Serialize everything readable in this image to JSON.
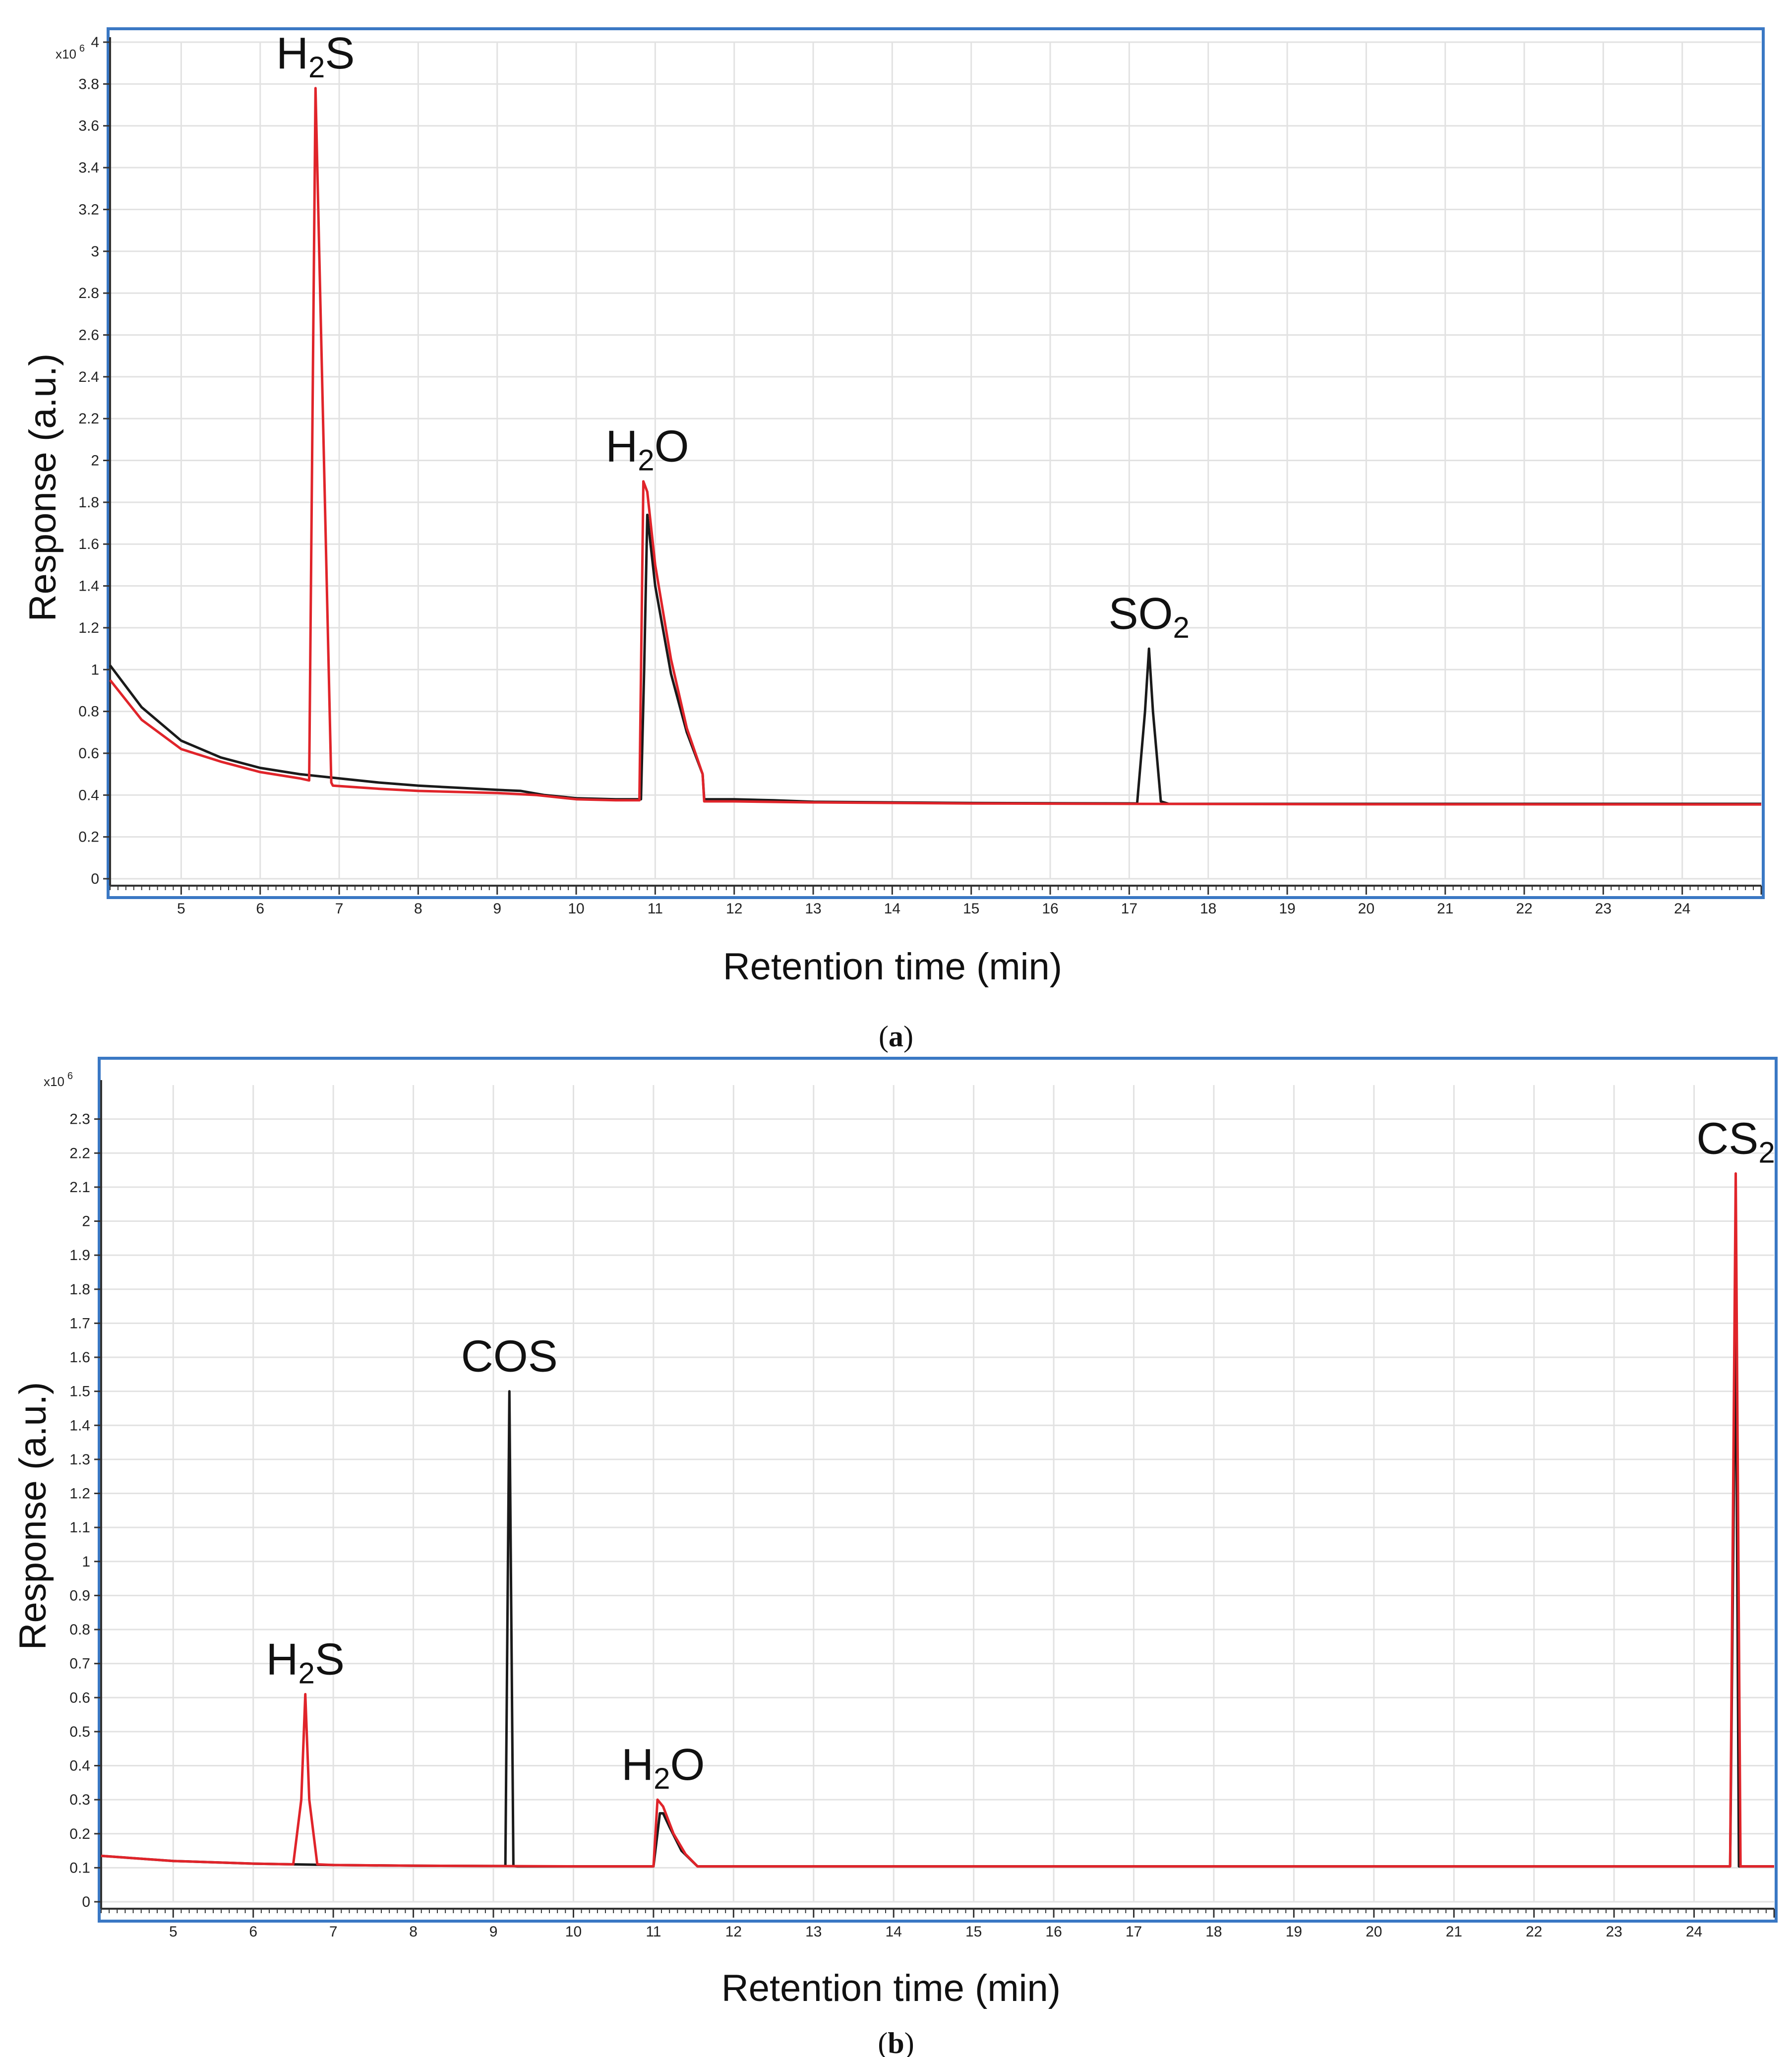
{
  "panels": [
    {
      "caption": {
        "open": "(",
        "letter": "a",
        "close": ")"
      },
      "scale_base": "x10",
      "scale_exp": "6",
      "chart_data": {
        "type": "line",
        "xlabel": "Retention time (min)",
        "ylabel": "Response (a.u.)",
        "xlim": [
          4.1,
          25.0
        ],
        "ylim": [
          0,
          4.0
        ],
        "xticks": [
          5,
          6,
          7,
          8,
          9,
          10,
          11,
          12,
          13,
          14,
          15,
          16,
          17,
          18,
          19,
          20,
          21,
          22,
          23,
          24
        ],
        "xtick_labels": [
          "5",
          "6",
          "7",
          "8",
          "9",
          "10",
          "11",
          "12",
          "13",
          "14",
          "15",
          "16",
          "17",
          "18",
          "19",
          "20",
          "21",
          "22",
          "23",
          "24"
        ],
        "yticks": [
          0,
          0.2,
          0.4,
          0.6,
          0.8,
          1,
          1.2,
          1.4,
          1.6,
          1.8,
          2,
          2.2,
          2.4,
          2.6,
          2.8,
          3,
          3.2,
          3.4,
          3.6,
          3.8,
          4
        ],
        "ytick_labels": [
          "0",
          "0.2",
          "0.4",
          "0.6",
          "0.8",
          "1",
          "1.2",
          "1.4",
          "1.6",
          "1.8",
          "2",
          "2.2",
          "2.4",
          "2.6",
          "2.8",
          "3",
          "3.2",
          "3.4",
          "3.6",
          "3.8",
          "4"
        ],
        "series": [
          {
            "name": "black trace",
            "color": "#1a1a1a",
            "x": [
              4.1,
              4.5,
              5.0,
              5.5,
              6.0,
              6.5,
              7.0,
              7.5,
              8.0,
              8.5,
              9.0,
              9.3,
              9.6,
              10.0,
              10.5,
              10.82,
              10.86,
              10.9,
              11.0,
              11.2,
              11.4,
              11.6,
              11.62,
              12.0,
              12.5,
              13.0,
              15.0,
              17.1,
              17.2,
              17.25,
              17.3,
              17.4,
              17.5,
              20.0,
              25.0
            ],
            "y": [
              1.02,
              0.82,
              0.66,
              0.58,
              0.53,
              0.5,
              0.48,
              0.46,
              0.445,
              0.435,
              0.425,
              0.42,
              0.4,
              0.385,
              0.38,
              0.38,
              1.0,
              1.74,
              1.4,
              0.98,
              0.7,
              0.5,
              0.38,
              0.38,
              0.375,
              0.368,
              0.362,
              0.36,
              0.8,
              1.1,
              0.8,
              0.37,
              0.358,
              0.358,
              0.358
            ]
          },
          {
            "name": "red trace",
            "color": "#e0242a",
            "x": [
              4.1,
              4.5,
              5.0,
              5.5,
              6.0,
              6.5,
              6.62,
              6.7,
              6.9,
              6.92,
              7.5,
              8.0,
              8.5,
              9.0,
              9.5,
              10.0,
              10.5,
              10.8,
              10.85,
              10.9,
              11.0,
              11.2,
              11.4,
              11.6,
              11.62,
              12.0,
              13.0,
              15.0,
              17.0,
              20.0,
              25.0
            ],
            "y": [
              0.95,
              0.76,
              0.62,
              0.56,
              0.51,
              0.48,
              0.47,
              3.78,
              0.46,
              0.445,
              0.43,
              0.42,
              0.415,
              0.41,
              0.4,
              0.38,
              0.375,
              0.375,
              1.9,
              1.85,
              1.5,
              1.05,
              0.72,
              0.5,
              0.37,
              0.37,
              0.365,
              0.36,
              0.358,
              0.356,
              0.355
            ]
          }
        ],
        "annotations": [
          {
            "label": "H",
            "sub": "2",
            "tail": "S",
            "x": 6.7,
            "y": 3.78
          },
          {
            "label": "H",
            "sub": "2",
            "tail": "O",
            "x": 10.9,
            "y": 1.9
          },
          {
            "label": "SO",
            "sub": "2",
            "tail": "",
            "x": 17.25,
            "y": 1.1
          }
        ]
      }
    },
    {
      "caption": {
        "open": "(",
        "letter": "b",
        "close": ")"
      },
      "scale_base": "x10",
      "scale_exp": "6",
      "chart_data": {
        "type": "line",
        "xlabel": "Retention time (min)",
        "ylabel": "Response (a.u.)",
        "xlim": [
          4.1,
          25.0
        ],
        "ylim": [
          0,
          2.4
        ],
        "xticks": [
          5,
          6,
          7,
          8,
          9,
          10,
          11,
          12,
          13,
          14,
          15,
          16,
          17,
          18,
          19,
          20,
          21,
          22,
          23,
          24
        ],
        "xtick_labels": [
          "5",
          "6",
          "7",
          "8",
          "9",
          "10",
          "11",
          "12",
          "13",
          "14",
          "15",
          "16",
          "17",
          "18",
          "19",
          "20",
          "21",
          "22",
          "23",
          "24"
        ],
        "yticks": [
          0,
          0.1,
          0.2,
          0.3,
          0.4,
          0.5,
          0.6,
          0.7,
          0.8,
          0.9,
          1,
          1.1,
          1.2,
          1.3,
          1.4,
          1.5,
          1.6,
          1.7,
          1.8,
          1.9,
          2,
          2.1,
          2.2,
          2.3
        ],
        "ytick_labels": [
          "0",
          "0.1",
          "0.2",
          "0.3",
          "0.4",
          "0.5",
          "0.6",
          "0.7",
          "0.8",
          "0.9",
          "1",
          "1.1",
          "1.2",
          "1.3",
          "1.4",
          "1.5",
          "1.6",
          "1.7",
          "1.8",
          "1.9",
          "2",
          "2.1",
          "2.2",
          "2.3"
        ],
        "series": [
          {
            "name": "black trace",
            "color": "#1a1a1a",
            "x": [
              4.1,
              5.0,
              6.0,
              7.0,
              8.0,
              9.0,
              9.15,
              9.2,
              9.25,
              9.3,
              10.0,
              11.0,
              11.08,
              11.12,
              11.2,
              11.35,
              11.55,
              12.0,
              15.0,
              20.0,
              24.45,
              24.52,
              24.56,
              24.6,
              25.0
            ],
            "y": [
              0.135,
              0.12,
              0.112,
              0.108,
              0.106,
              0.105,
              0.105,
              1.5,
              0.105,
              0.104,
              0.104,
              0.104,
              0.26,
              0.26,
              0.22,
              0.15,
              0.104,
              0.104,
              0.104,
              0.104,
              0.104,
              1.76,
              0.104,
              0.104,
              0.104
            ]
          },
          {
            "name": "red trace",
            "color": "#e0242a",
            "x": [
              4.1,
              5.0,
              6.0,
              6.5,
              6.6,
              6.65,
              6.7,
              6.8,
              7.0,
              8.0,
              9.0,
              10.0,
              11.0,
              11.05,
              11.12,
              11.25,
              11.4,
              11.55,
              12.0,
              15.0,
              20.0,
              24.45,
              24.52,
              24.58,
              25.0
            ],
            "y": [
              0.135,
              0.12,
              0.112,
              0.11,
              0.3,
              0.61,
              0.3,
              0.11,
              0.108,
              0.106,
              0.105,
              0.104,
              0.104,
              0.3,
              0.28,
              0.2,
              0.14,
              0.104,
              0.104,
              0.104,
              0.104,
              0.104,
              2.14,
              0.104,
              0.104
            ]
          }
        ],
        "annotations": [
          {
            "label": "H",
            "sub": "2",
            "tail": "S",
            "x": 6.65,
            "y": 0.61
          },
          {
            "label": "COS",
            "sub": "",
            "tail": "",
            "x": 9.2,
            "y": 1.5
          },
          {
            "label": "H",
            "sub": "2",
            "tail": "O",
            "x": 11.12,
            "y": 0.3
          },
          {
            "label": "CS",
            "sub": "2",
            "tail": "",
            "x": 24.52,
            "y": 2.14
          }
        ]
      }
    }
  ]
}
